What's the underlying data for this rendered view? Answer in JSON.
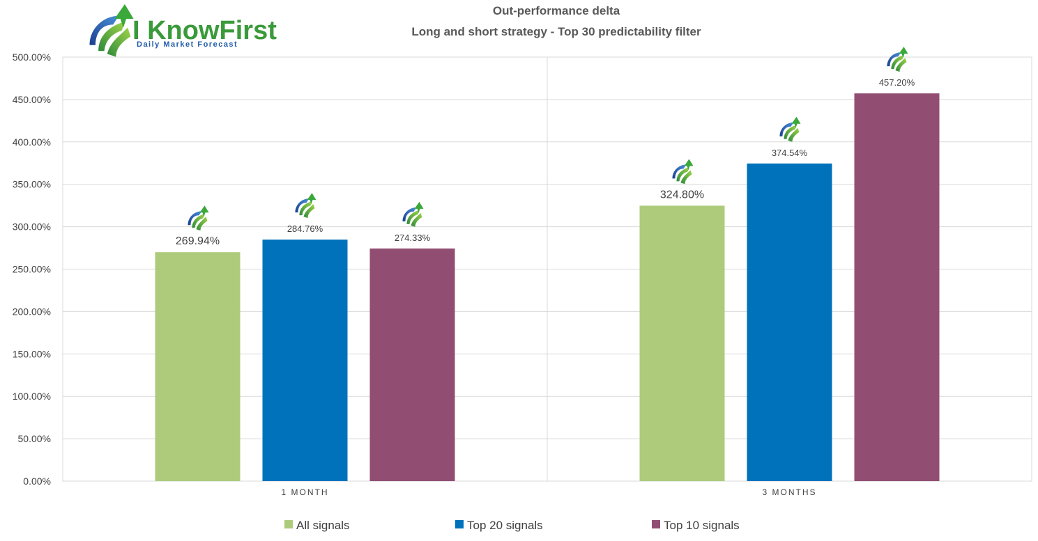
{
  "logo": {
    "brand_text": "I KnowFirst",
    "tagline": "Daily Market Forecast"
  },
  "chart_data": {
    "type": "bar",
    "title": "Out-performance delta",
    "subtitle": "Long and short strategy - Top 30 predictability filter",
    "categories": [
      "1 MONTH",
      "3 MONTHS"
    ],
    "series": [
      {
        "name": "All signals",
        "color": "#adcb7b",
        "values": [
          269.94,
          324.8
        ],
        "labels": [
          "269.94%",
          "324.80%"
        ]
      },
      {
        "name": "Top 20 signals",
        "color": "#0072bc",
        "values": [
          284.76,
          374.54
        ],
        "labels": [
          "284.76%",
          "374.54%"
        ]
      },
      {
        "name": "Top 10 signals",
        "color": "#914e72",
        "values": [
          274.33,
          457.2
        ],
        "labels": [
          "274.33%",
          "457.20%"
        ]
      }
    ],
    "ylim": [
      0,
      500
    ],
    "yticks": [
      "0.00%",
      "50.00%",
      "100.00%",
      "150.00%",
      "200.00%",
      "250.00%",
      "300.00%",
      "350.00%",
      "400.00%",
      "450.00%",
      "500.00%"
    ],
    "grid": true,
    "legend_position": "bottom",
    "marker_icon": "i-know-first-logo-icon"
  }
}
